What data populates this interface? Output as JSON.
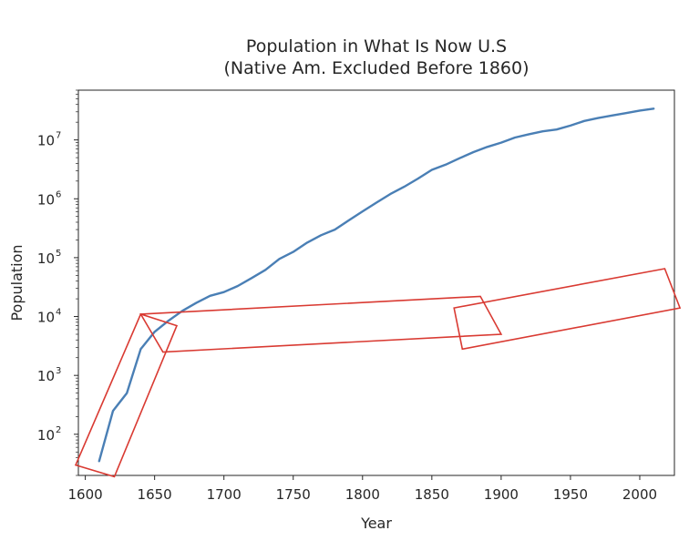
{
  "chart_data": {
    "type": "line",
    "title": [
      "Population in What Is Now U.S",
      "(Native Am. Excluded Before 1860)"
    ],
    "xlabel": "Year",
    "ylabel": "Population",
    "xlim": [
      1595,
      2025
    ],
    "ylim": [
      20,
      70000000
    ],
    "yscale": "log",
    "grid": false,
    "xticks": [
      1600,
      1650,
      1700,
      1750,
      1800,
      1850,
      1900,
      1950,
      2000
    ],
    "yticks": [
      {
        "value": 100,
        "base": "10",
        "exp": "2"
      },
      {
        "value": 1000,
        "base": "10",
        "exp": "3"
      },
      {
        "value": 10000,
        "base": "10",
        "exp": "4"
      },
      {
        "value": 100000,
        "base": "10",
        "exp": "5"
      },
      {
        "value": 1000000,
        "base": "10",
        "exp": "6"
      },
      {
        "value": 10000000,
        "base": "10",
        "exp": "7"
      }
    ],
    "series": [
      {
        "color": "#4a7fb5",
        "x": [
          1610,
          1620,
          1630,
          1640,
          1650,
          1660,
          1670,
          1680,
          1690,
          1700,
          1710,
          1720,
          1730,
          1740,
          1750,
          1760,
          1770,
          1780,
          1790,
          1800,
          1810,
          1820,
          1830,
          1840,
          1850,
          1860,
          1870,
          1880,
          1890,
          1900,
          1910,
          1920,
          1930,
          1940,
          1950,
          1960,
          1970,
          1980,
          1990,
          2000,
          2010
        ],
        "values": [
          35,
          250,
          500,
          2800,
          5500,
          8500,
          12500,
          17000,
          22500,
          26000,
          33000,
          45000,
          62000,
          95000,
          125000,
          180000,
          240000,
          300000,
          430000,
          610000,
          860000,
          1200000,
          1600000,
          2200000,
          3100000,
          3800000,
          4900000,
          6200000,
          7600000,
          9000000,
          11000000,
          12500000,
          14000000,
          15000000,
          17500000,
          21000000,
          23500000,
          26000000,
          28500000,
          31500000,
          34000000
        ]
      }
    ],
    "annotations": [
      {
        "shape": "polygon",
        "color": "#d93a32",
        "points": [
          [
            1593,
            30
          ],
          [
            1621,
            19
          ],
          [
            1666,
            7000
          ],
          [
            1640,
            11000
          ]
        ]
      },
      {
        "shape": "polygon",
        "color": "#d93a32",
        "points": [
          [
            1640,
            11000
          ],
          [
            1885,
            22000
          ],
          [
            1900,
            5000
          ],
          [
            1656,
            2500
          ]
        ]
      },
      {
        "shape": "polygon",
        "color": "#d93a32",
        "points": [
          [
            1866,
            14000
          ],
          [
            2018,
            65000
          ],
          [
            2029,
            14000
          ],
          [
            1872,
            2800
          ]
        ]
      }
    ]
  }
}
